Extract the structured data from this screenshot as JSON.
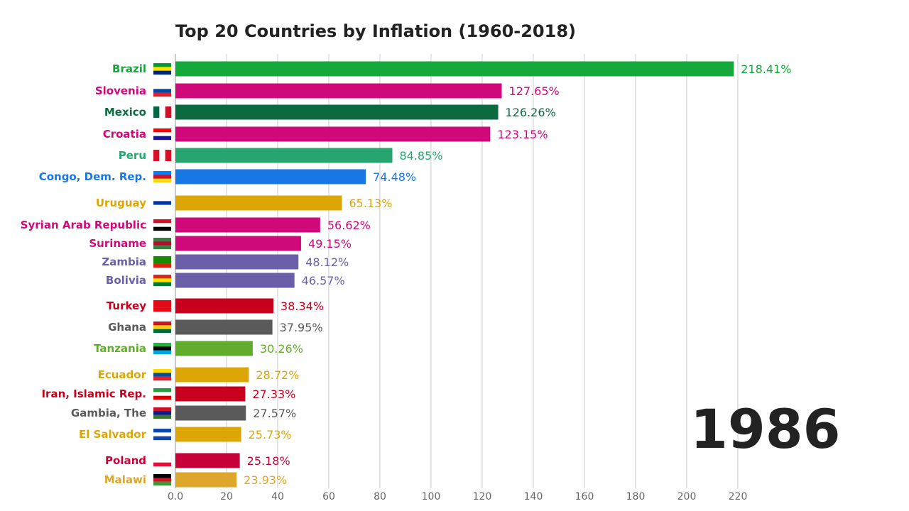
{
  "chart_data": {
    "type": "bar",
    "orientation": "horizontal",
    "title": "Top 20 Countries by Inflation (1960-2018)",
    "year": "1986",
    "xlim": [
      0,
      220
    ],
    "xticks": [
      "0.0",
      "20",
      "40",
      "60",
      "80",
      "100",
      "120",
      "140",
      "160",
      "180",
      "200",
      "220"
    ],
    "grid": true,
    "value_suffix": "%",
    "series": [
      {
        "name": "Brazil",
        "value": 218.41,
        "label": "218.41%",
        "color": "#14a83b",
        "flag": [
          "#009c3b",
          "#ffdf00",
          "#002776"
        ]
      },
      {
        "name": "Slovenia",
        "value": 127.65,
        "label": "127.65%",
        "color": "#d0097b",
        "flag": [
          "#ffffff",
          "#0047ab",
          "#ed1c24"
        ]
      },
      {
        "name": "Mexico",
        "value": 126.26,
        "label": "126.26%",
        "color": "#0b6b3f",
        "flag": [
          "#006847",
          "#ffffff",
          "#ce1126"
        ],
        "vertical": true
      },
      {
        "name": "Croatia",
        "value": 123.15,
        "label": "123.15%",
        "color": "#d0097b",
        "flag": [
          "#ff0000",
          "#ffffff",
          "#171796"
        ]
      },
      {
        "name": "Peru",
        "value": 84.85,
        "label": "84.85%",
        "color": "#27a56f",
        "flag": [
          "#d91023",
          "#ffffff",
          "#d91023"
        ],
        "vertical": true
      },
      {
        "name": "Congo, Dem. Rep.",
        "value": 74.48,
        "label": "74.48%",
        "color": "#1777e5",
        "flag": [
          "#007fff",
          "#ce1021",
          "#f7d618"
        ]
      },
      {
        "name": "Uruguay",
        "value": 65.13,
        "label": "65.13%",
        "color": "#dca705",
        "flag": [
          "#ffffff",
          "#0038a8",
          "#ffffff"
        ]
      },
      {
        "name": "Syrian Arab Republic",
        "value": 56.62,
        "label": "56.62%",
        "color": "#d0097b",
        "flag": [
          "#ce1126",
          "#ffffff",
          "#000000"
        ]
      },
      {
        "name": "Suriname",
        "value": 49.15,
        "label": "49.15%",
        "color": "#d0097b",
        "flag": [
          "#377e3f",
          "#b40a2d",
          "#377e3f"
        ]
      },
      {
        "name": "Zambia",
        "value": 48.12,
        "label": "48.12%",
        "color": "#6a5fa8",
        "flag": [
          "#198a00",
          "#198a00",
          "#de2010"
        ]
      },
      {
        "name": "Bolivia",
        "value": 46.57,
        "label": "46.57%",
        "color": "#6a5fa8",
        "flag": [
          "#d52b1e",
          "#f9e300",
          "#007934"
        ]
      },
      {
        "name": "Turkey",
        "value": 38.34,
        "label": "38.34%",
        "color": "#c8001e",
        "flag": [
          "#e30a17",
          "#e30a17",
          "#e30a17"
        ]
      },
      {
        "name": "Ghana",
        "value": 37.95,
        "label": "37.95%",
        "color": "#5a5a5a",
        "flag": [
          "#ce1126",
          "#fcd116",
          "#006b3f"
        ]
      },
      {
        "name": "Tanzania",
        "value": 30.26,
        "label": "30.26%",
        "color": "#5fad2a",
        "flag": [
          "#1eb53a",
          "#000000",
          "#00a3dd"
        ]
      },
      {
        "name": "Ecuador",
        "value": 28.72,
        "label": "28.72%",
        "color": "#dca705",
        "flag": [
          "#ffdd00",
          "#034ea2",
          "#ed1c24"
        ]
      },
      {
        "name": "Iran, Islamic Rep.",
        "value": 27.33,
        "label": "27.33%",
        "color": "#c8001e",
        "flag": [
          "#239f40",
          "#ffffff",
          "#da0000"
        ]
      },
      {
        "name": "Gambia, The",
        "value": 27.57,
        "label": "27.57%",
        "color": "#5a5a5a",
        "flag": [
          "#ce1126",
          "#0c1c8c",
          "#3a7728"
        ]
      },
      {
        "name": "El Salvador",
        "value": 25.73,
        "label": "25.73%",
        "color": "#dca705",
        "flag": [
          "#0f47af",
          "#ffffff",
          "#0f47af"
        ]
      },
      {
        "name": "Poland",
        "value": 25.18,
        "label": "25.18%",
        "color": "#c8003a",
        "flag": [
          "#ffffff",
          "#ffffff",
          "#dc143c"
        ]
      },
      {
        "name": "Malawi",
        "value": 23.93,
        "label": "23.93%",
        "color": "#dca72a",
        "flag": [
          "#000000",
          "#ce1126",
          "#339e35"
        ]
      }
    ]
  }
}
